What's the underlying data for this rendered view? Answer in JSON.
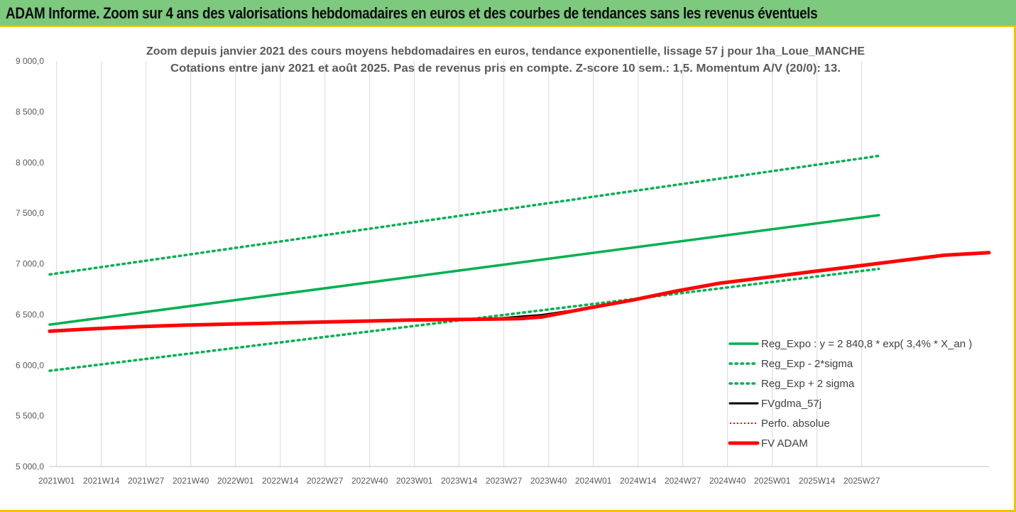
{
  "banner": {
    "title": "ADAM Informe. Zoom sur 4 ans des valorisations hebdomadaires en euros et des courbes de tendances sans les revenus éventuels"
  },
  "colors": {
    "banner_bg": "#7dc97d",
    "border_accent": "#f2c300",
    "regression": "#00b050",
    "fv_gdma": "#000000",
    "fv_adam": "#ff0000",
    "perfo": "#ff0000"
  },
  "chart_data": {
    "type": "line",
    "title_lines": [
      "Zoom depuis janvier 2021 des cours moyens hebdomadaires en euros, tendance exponentielle, lissage 57 j pour 1ha_Loue_MANCHE",
      "Cotations entre janv 2021 et août 2025.  Pas de revenus pris en compte.  Z-score 10 sem.: 1,5.  Momentum A/V (20/0): 13."
    ],
    "x_tick_labels": [
      "2021W01",
      "2021W14",
      "2021W27",
      "2021W40",
      "2022W01",
      "2022W14",
      "2022W27",
      "2022W40",
      "2023W01",
      "2023W14",
      "2023W27",
      "2023W40",
      "2024W01",
      "2024W14",
      "2024W27",
      "2024W40",
      "2025W01",
      "2025W14",
      "2025W27"
    ],
    "y_tick_labels": [
      "5 000,0",
      "5 500,0",
      "6 000,0",
      "6 500,0",
      "7 000,0",
      "7 500,0",
      "8 000,0",
      "8 500,0",
      "9 000,0"
    ],
    "ylim": [
      5000,
      9000
    ],
    "y_step": 500,
    "x_range_weeks": [
      0,
      241
    ],
    "grid": "vertical",
    "legend_position": "bottom-right",
    "series": [
      {
        "name": "Reg_Expo : y = 2 840,8 * exp( 3,4% *  X_an )",
        "style": "solid",
        "color": "#00b050",
        "points": [
          [
            0,
            6400
          ],
          [
            241,
            7480
          ]
        ]
      },
      {
        "name": "Reg_Exp - 2*sigma",
        "style": "dotted",
        "color": "#00b050",
        "points": [
          [
            0,
            5945
          ],
          [
            241,
            6950
          ]
        ]
      },
      {
        "name": "Reg_Exp + 2 sigma",
        "style": "dotted",
        "color": "#00b050",
        "points": [
          [
            0,
            6895
          ],
          [
            241,
            8065
          ]
        ]
      },
      {
        "name": "FVgdma_57j",
        "style": "solid-thin",
        "color": "#000000",
        "points": [
          [
            0,
            6335
          ],
          [
            13,
            6360
          ],
          [
            26,
            6380
          ],
          [
            39,
            6395
          ],
          [
            52,
            6405
          ],
          [
            65,
            6415
          ],
          [
            78,
            6425
          ],
          [
            91,
            6435
          ],
          [
            104,
            6445
          ],
          [
            117,
            6450
          ],
          [
            130,
            6460
          ],
          [
            137,
            6480
          ],
          [
            143,
            6495
          ],
          [
            156,
            6560
          ],
          [
            169,
            6640
          ],
          [
            182,
            6730
          ],
          [
            195,
            6810
          ],
          [
            208,
            6870
          ],
          [
            221,
            6920
          ],
          [
            234,
            6975
          ],
          [
            247,
            7030
          ],
          [
            260,
            7085
          ],
          [
            273,
            7110
          ]
        ]
      },
      {
        "name": "Perfo. absolue",
        "style": "dotted",
        "color": "#ff0000",
        "points": []
      },
      {
        "name": "FV ADAM",
        "style": "solid-thick",
        "color": "#ff0000",
        "points": [
          [
            0,
            6335
          ],
          [
            13,
            6360
          ],
          [
            26,
            6380
          ],
          [
            39,
            6395
          ],
          [
            52,
            6405
          ],
          [
            65,
            6415
          ],
          [
            78,
            6425
          ],
          [
            91,
            6435
          ],
          [
            104,
            6445
          ],
          [
            117,
            6450
          ],
          [
            130,
            6455
          ],
          [
            137,
            6460
          ],
          [
            143,
            6475
          ],
          [
            156,
            6560
          ],
          [
            169,
            6640
          ],
          [
            182,
            6730
          ],
          [
            195,
            6810
          ],
          [
            208,
            6865
          ],
          [
            221,
            6920
          ],
          [
            234,
            6975
          ],
          [
            247,
            7030
          ],
          [
            260,
            7085
          ],
          [
            273,
            7110
          ]
        ]
      }
    ]
  }
}
